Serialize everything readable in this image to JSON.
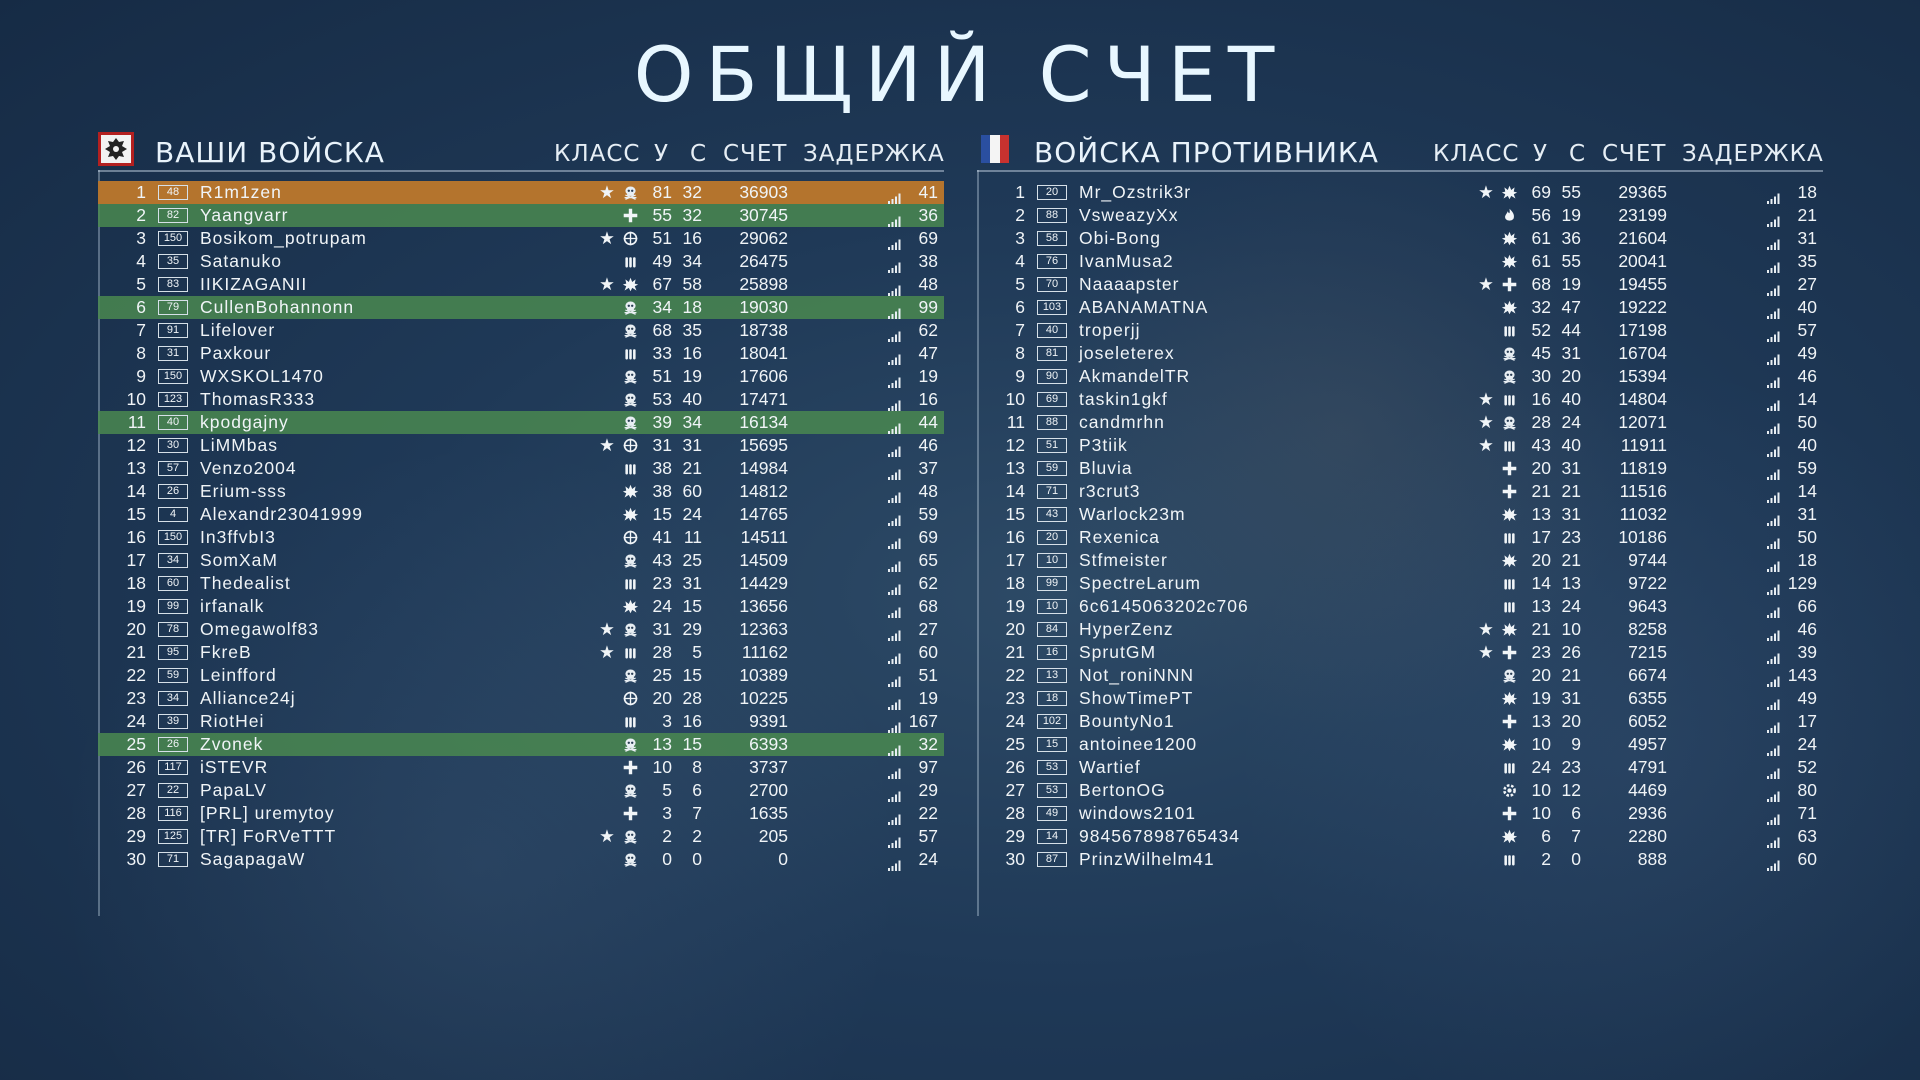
{
  "title": "ОБЩИЙ СЧЕТ",
  "columns": {
    "class": "КЛАСС",
    "kills": "У",
    "deaths": "С",
    "score": "СЧЕТ",
    "ping": "ЗАДЕРЖКА"
  },
  "teams": [
    {
      "name": "ВАШИ ВОЙСКА",
      "emblem": "germany-emblem",
      "players": [
        {
          "rank": "1",
          "level": "48",
          "name": "R1m1zen",
          "star": true,
          "cls": "skull",
          "k": "81",
          "d": "32",
          "score": "36903",
          "ping": "41",
          "hl": "me"
        },
        {
          "rank": "2",
          "level": "82",
          "name": "Yaangvarr",
          "star": false,
          "cls": "cross",
          "k": "55",
          "d": "32",
          "score": "30745",
          "ping": "36",
          "hl": "squad"
        },
        {
          "rank": "3",
          "level": "150",
          "name": "Bosikom_potrupam",
          "star": true,
          "cls": "scope",
          "k": "51",
          "d": "16",
          "score": "29062",
          "ping": "69",
          "hl": ""
        },
        {
          "rank": "4",
          "level": "35",
          "name": "Satanuko",
          "star": false,
          "cls": "ammo",
          "k": "49",
          "d": "34",
          "score": "26475",
          "ping": "38",
          "hl": ""
        },
        {
          "rank": "5",
          "level": "83",
          "name": "IIKIZAGANII",
          "star": true,
          "cls": "blast",
          "k": "67",
          "d": "58",
          "score": "25898",
          "ping": "48",
          "hl": ""
        },
        {
          "rank": "6",
          "level": "79",
          "name": "CullenBohannonn",
          "star": false,
          "cls": "skull",
          "k": "34",
          "d": "18",
          "score": "19030",
          "ping": "99",
          "hl": "squad"
        },
        {
          "rank": "7",
          "level": "91",
          "name": "Lifelover",
          "star": false,
          "cls": "skull",
          "k": "68",
          "d": "35",
          "score": "18738",
          "ping": "62",
          "hl": ""
        },
        {
          "rank": "8",
          "level": "31",
          "name": "Paxkour",
          "star": false,
          "cls": "ammo",
          "k": "33",
          "d": "16",
          "score": "18041",
          "ping": "47",
          "hl": ""
        },
        {
          "rank": "9",
          "level": "150",
          "name": "WXSKOL1470",
          "star": false,
          "cls": "skull",
          "k": "51",
          "d": "19",
          "score": "17606",
          "ping": "19",
          "hl": ""
        },
        {
          "rank": "10",
          "level": "123",
          "name": "ThomasR333",
          "star": false,
          "cls": "skull",
          "k": "53",
          "d": "40",
          "score": "17471",
          "ping": "16",
          "hl": ""
        },
        {
          "rank": "11",
          "level": "40",
          "name": "kpodgajny",
          "star": false,
          "cls": "skull",
          "k": "39",
          "d": "34",
          "score": "16134",
          "ping": "44",
          "hl": "squad"
        },
        {
          "rank": "12",
          "level": "30",
          "name": "LiMMbas",
          "star": true,
          "cls": "scope",
          "k": "31",
          "d": "31",
          "score": "15695",
          "ping": "46",
          "hl": ""
        },
        {
          "rank": "13",
          "level": "57",
          "name": "Venzo2004",
          "star": false,
          "cls": "ammo",
          "k": "38",
          "d": "21",
          "score": "14984",
          "ping": "37",
          "hl": ""
        },
        {
          "rank": "14",
          "level": "26",
          "name": "Erium-sss",
          "star": false,
          "cls": "blast",
          "k": "38",
          "d": "60",
          "score": "14812",
          "ping": "48",
          "hl": ""
        },
        {
          "rank": "15",
          "level": "4",
          "name": "Alexandr23041999",
          "star": false,
          "cls": "blast",
          "k": "15",
          "d": "24",
          "score": "14765",
          "ping": "59",
          "hl": ""
        },
        {
          "rank": "16",
          "level": "150",
          "name": "In3ffvbI3",
          "star": false,
          "cls": "scope",
          "k": "41",
          "d": "11",
          "score": "14511",
          "ping": "69",
          "hl": ""
        },
        {
          "rank": "17",
          "level": "34",
          "name": "SomXaM",
          "star": false,
          "cls": "skull",
          "k": "43",
          "d": "25",
          "score": "14509",
          "ping": "65",
          "hl": ""
        },
        {
          "rank": "18",
          "level": "60",
          "name": "Thedealist",
          "star": false,
          "cls": "ammo",
          "k": "23",
          "d": "31",
          "score": "14429",
          "ping": "62",
          "hl": ""
        },
        {
          "rank": "19",
          "level": "99",
          "name": "irfanalk",
          "star": false,
          "cls": "blast",
          "k": "24",
          "d": "15",
          "score": "13656",
          "ping": "68",
          "hl": ""
        },
        {
          "rank": "20",
          "level": "78",
          "name": "Omegawolf83",
          "star": true,
          "cls": "skull",
          "k": "31",
          "d": "29",
          "score": "12363",
          "ping": "27",
          "hl": ""
        },
        {
          "rank": "21",
          "level": "95",
          "name": "FkreB",
          "star": true,
          "cls": "ammo",
          "k": "28",
          "d": "5",
          "score": "11162",
          "ping": "60",
          "hl": ""
        },
        {
          "rank": "22",
          "level": "59",
          "name": "Leinfford",
          "star": false,
          "cls": "skull",
          "k": "25",
          "d": "15",
          "score": "10389",
          "ping": "51",
          "hl": ""
        },
        {
          "rank": "23",
          "level": "34",
          "name": "Alliance24j",
          "star": false,
          "cls": "scope",
          "k": "20",
          "d": "28",
          "score": "10225",
          "ping": "19",
          "hl": ""
        },
        {
          "rank": "24",
          "level": "39",
          "name": "RiotHei",
          "star": false,
          "cls": "ammo",
          "k": "3",
          "d": "16",
          "score": "9391",
          "ping": "167",
          "hl": ""
        },
        {
          "rank": "25",
          "level": "26",
          "name": "Zvonek",
          "star": false,
          "cls": "skull",
          "k": "13",
          "d": "15",
          "score": "6393",
          "ping": "32",
          "hl": "squad"
        },
        {
          "rank": "26",
          "level": "117",
          "name": "iSTEVR",
          "star": false,
          "cls": "cross",
          "k": "10",
          "d": "8",
          "score": "3737",
          "ping": "97",
          "hl": ""
        },
        {
          "rank": "27",
          "level": "22",
          "name": "PapaLV",
          "star": false,
          "cls": "skull",
          "k": "5",
          "d": "6",
          "score": "2700",
          "ping": "29",
          "hl": ""
        },
        {
          "rank": "28",
          "level": "116",
          "name": "[PRL] uremytoy",
          "star": false,
          "cls": "cross",
          "k": "3",
          "d": "7",
          "score": "1635",
          "ping": "22",
          "hl": ""
        },
        {
          "rank": "29",
          "level": "125",
          "name": "[TR] FoRVeTTT",
          "star": true,
          "cls": "skull",
          "k": "2",
          "d": "2",
          "score": "205",
          "ping": "57",
          "hl": ""
        },
        {
          "rank": "30",
          "level": "71",
          "name": "SagapagaW",
          "star": false,
          "cls": "skull",
          "k": "0",
          "d": "0",
          "score": "0",
          "ping": "24",
          "hl": ""
        }
      ]
    },
    {
      "name": "ВОЙСКА ПРОТИВНИКА",
      "emblem": "france-flag",
      "players": [
        {
          "rank": "1",
          "level": "20",
          "name": "Mr_Ozstrik3r",
          "star": true,
          "cls": "blast",
          "k": "69",
          "d": "55",
          "score": "29365",
          "ping": "18",
          "hl": ""
        },
        {
          "rank": "2",
          "level": "88",
          "name": "VsweazyXx",
          "star": false,
          "cls": "flame",
          "k": "56",
          "d": "19",
          "score": "23199",
          "ping": "21",
          "hl": ""
        },
        {
          "rank": "3",
          "level": "58",
          "name": "Obi-Bong",
          "star": false,
          "cls": "blast",
          "k": "61",
          "d": "36",
          "score": "21604",
          "ping": "31",
          "hl": ""
        },
        {
          "rank": "4",
          "level": "76",
          "name": "IvanMusa2",
          "star": false,
          "cls": "blast",
          "k": "61",
          "d": "55",
          "score": "20041",
          "ping": "35",
          "hl": ""
        },
        {
          "rank": "5",
          "level": "70",
          "name": "Naaaapster",
          "star": true,
          "cls": "cross",
          "k": "68",
          "d": "19",
          "score": "19455",
          "ping": "27",
          "hl": ""
        },
        {
          "rank": "6",
          "level": "103",
          "name": "ABANAMATNA",
          "star": false,
          "cls": "blast",
          "k": "32",
          "d": "47",
          "score": "19222",
          "ping": "40",
          "hl": ""
        },
        {
          "rank": "7",
          "level": "40",
          "name": "troperjj",
          "star": false,
          "cls": "ammo",
          "k": "52",
          "d": "44",
          "score": "17198",
          "ping": "57",
          "hl": ""
        },
        {
          "rank": "8",
          "level": "81",
          "name": "joseleterex",
          "star": false,
          "cls": "skull",
          "k": "45",
          "d": "31",
          "score": "16704",
          "ping": "49",
          "hl": ""
        },
        {
          "rank": "9",
          "level": "90",
          "name": "AkmandelTR",
          "star": false,
          "cls": "skull",
          "k": "30",
          "d": "20",
          "score": "15394",
          "ping": "46",
          "hl": ""
        },
        {
          "rank": "10",
          "level": "69",
          "name": "taskin1gkf",
          "star": true,
          "cls": "ammo",
          "k": "16",
          "d": "40",
          "score": "14804",
          "ping": "14",
          "hl": ""
        },
        {
          "rank": "11",
          "level": "88",
          "name": "candmrhn",
          "star": true,
          "cls": "skull",
          "k": "28",
          "d": "24",
          "score": "12071",
          "ping": "50",
          "hl": ""
        },
        {
          "rank": "12",
          "level": "51",
          "name": "P3tiik",
          "star": true,
          "cls": "ammo",
          "k": "43",
          "d": "40",
          "score": "11911",
          "ping": "40",
          "hl": ""
        },
        {
          "rank": "13",
          "level": "59",
          "name": "Bluvia",
          "star": false,
          "cls": "cross",
          "k": "20",
          "d": "31",
          "score": "11819",
          "ping": "59",
          "hl": ""
        },
        {
          "rank": "14",
          "level": "71",
          "name": "r3crut3",
          "star": false,
          "cls": "cross",
          "k": "21",
          "d": "21",
          "score": "11516",
          "ping": "14",
          "hl": ""
        },
        {
          "rank": "15",
          "level": "43",
          "name": "Warlock23m",
          "star": false,
          "cls": "blast",
          "k": "13",
          "d": "31",
          "score": "11032",
          "ping": "31",
          "hl": ""
        },
        {
          "rank": "16",
          "level": "20",
          "name": "Rexenica",
          "star": false,
          "cls": "ammo",
          "k": "17",
          "d": "23",
          "score": "10186",
          "ping": "50",
          "hl": ""
        },
        {
          "rank": "17",
          "level": "10",
          "name": "Stfmeister",
          "star": false,
          "cls": "blast",
          "k": "20",
          "d": "21",
          "score": "9744",
          "ping": "18",
          "hl": ""
        },
        {
          "rank": "18",
          "level": "99",
          "name": "SpectreLarum",
          "star": false,
          "cls": "ammo",
          "k": "14",
          "d": "13",
          "score": "9722",
          "ping": "129",
          "hl": ""
        },
        {
          "rank": "19",
          "level": "10",
          "name": "6c6145063202c706",
          "star": false,
          "cls": "ammo",
          "k": "13",
          "d": "24",
          "score": "9643",
          "ping": "66",
          "hl": ""
        },
        {
          "rank": "20",
          "level": "84",
          "name": "HyperZenz",
          "star": true,
          "cls": "blast",
          "k": "21",
          "d": "10",
          "score": "8258",
          "ping": "46",
          "hl": ""
        },
        {
          "rank": "21",
          "level": "16",
          "name": "SprutGM",
          "star": true,
          "cls": "cross",
          "k": "23",
          "d": "26",
          "score": "7215",
          "ping": "39",
          "hl": ""
        },
        {
          "rank": "22",
          "level": "13",
          "name": "Not_roniNNN",
          "star": false,
          "cls": "skull",
          "k": "20",
          "d": "21",
          "score": "6674",
          "ping": "143",
          "hl": ""
        },
        {
          "rank": "23",
          "level": "18",
          "name": "ShowTimePT",
          "star": false,
          "cls": "blast",
          "k": "19",
          "d": "31",
          "score": "6355",
          "ping": "49",
          "hl": ""
        },
        {
          "rank": "24",
          "level": "102",
          "name": "BountyNo1",
          "star": false,
          "cls": "cross",
          "k": "13",
          "d": "20",
          "score": "6052",
          "ping": "17",
          "hl": ""
        },
        {
          "rank": "25",
          "level": "15",
          "name": "antoinee1200",
          "star": false,
          "cls": "blast",
          "k": "10",
          "d": "9",
          "score": "4957",
          "ping": "24",
          "hl": ""
        },
        {
          "rank": "26",
          "level": "53",
          "name": "Wartief",
          "star": false,
          "cls": "ammo",
          "k": "24",
          "d": "23",
          "score": "4791",
          "ping": "52",
          "hl": ""
        },
        {
          "rank": "27",
          "level": "53",
          "name": "BertonOG",
          "star": false,
          "cls": "gear",
          "k": "10",
          "d": "12",
          "score": "4469",
          "ping": "80",
          "hl": ""
        },
        {
          "rank": "28",
          "level": "49",
          "name": "windows2101",
          "star": false,
          "cls": "cross",
          "k": "10",
          "d": "6",
          "score": "2936",
          "ping": "71",
          "hl": ""
        },
        {
          "rank": "29",
          "level": "14",
          "name": "984567898765434",
          "star": false,
          "cls": "blast",
          "k": "6",
          "d": "7",
          "score": "2280",
          "ping": "63",
          "hl": ""
        },
        {
          "rank": "30",
          "level": "87",
          "name": "PrinzWilhelm41",
          "star": false,
          "cls": "ammo",
          "k": "2",
          "d": "0",
          "score": "888",
          "ping": "60",
          "hl": ""
        }
      ]
    }
  ]
}
